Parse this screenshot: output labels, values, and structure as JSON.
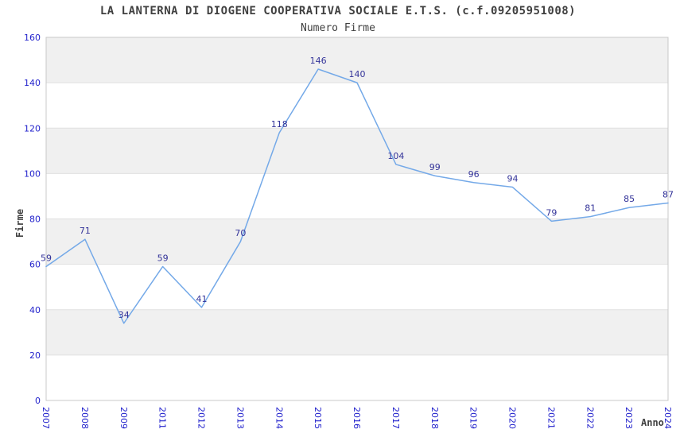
{
  "chart_data": {
    "type": "line",
    "title": "LA LANTERNA DI DIOGENE COOPERATIVA SOCIALE E.T.S. (c.f.09205951008)",
    "subtitle": "Numero Firme",
    "xlabel": "Anno",
    "ylabel": "Firme",
    "categories": [
      "2007",
      "2008",
      "2009",
      "2011",
      "2012",
      "2013",
      "2014",
      "2015",
      "2016",
      "2017",
      "2018",
      "2019",
      "2020",
      "2021",
      "2022",
      "2023",
      "2024"
    ],
    "values": [
      59,
      71,
      34,
      59,
      41,
      70,
      118,
      146,
      140,
      104,
      99,
      96,
      94,
      79,
      81,
      85,
      87
    ],
    "ylim": [
      0,
      160
    ],
    "ytick_interval": 20,
    "legend_position": "none",
    "grid": "horizontal-bands",
    "notes": "single series, straight line segments, value label above each point, x labels rotated vertical, year 2010 absent",
    "colors": {
      "line": "#74a9e8",
      "tick_label": "#2222cc",
      "value_label": "#333399",
      "title_text": "#404040",
      "band_fill": "#f0f0f0",
      "band_alt_fill": "#ffffff",
      "grid_line": "#e0e0e0",
      "plot_border": "#c8c8c8",
      "background": "#ffffff"
    }
  }
}
